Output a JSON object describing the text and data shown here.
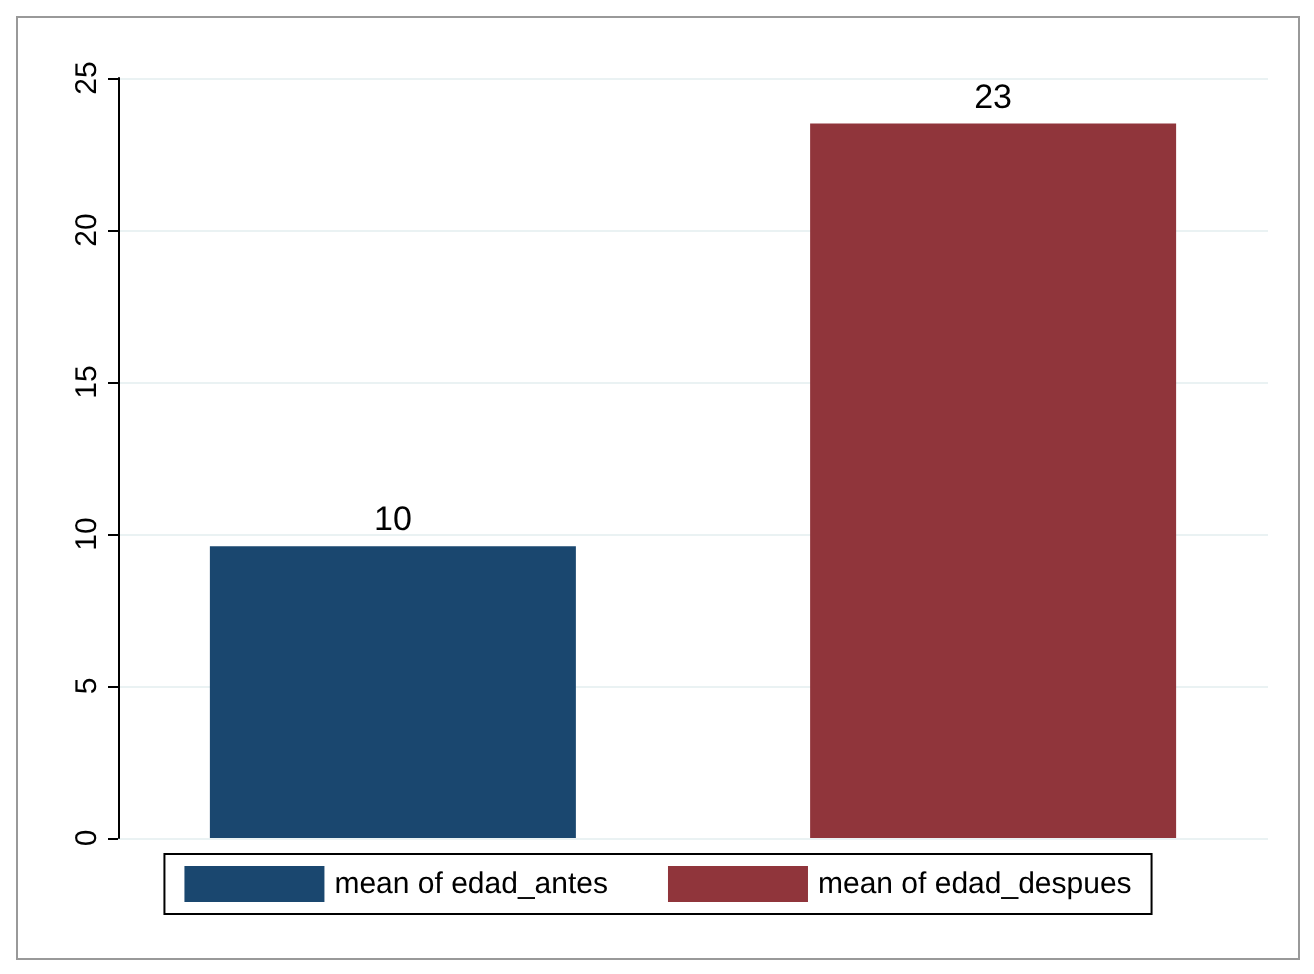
{
  "chart_data": {
    "type": "bar",
    "categories": [
      null
    ],
    "series": [
      {
        "name": "mean of edad_antes",
        "color": "#1a476f",
        "values": [
          9.6
        ],
        "value_labels": [
          "10"
        ]
      },
      {
        "name": "mean of edad_despues",
        "color": "#90353b",
        "values": [
          23.5
        ],
        "value_labels": [
          "23"
        ]
      }
    ],
    "ylim": [
      0,
      25
    ],
    "yticks": [
      0,
      5,
      10,
      15,
      20,
      25
    ],
    "grid": "y",
    "legend": "bottom",
    "tick_labels": "y"
  }
}
